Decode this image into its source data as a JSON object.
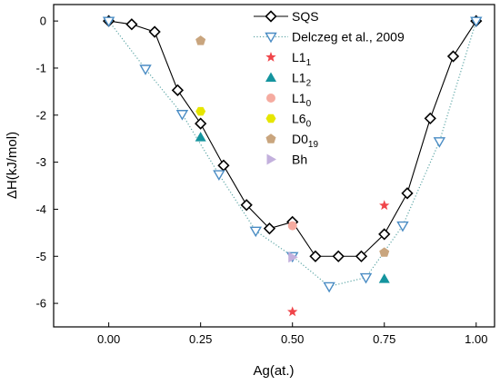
{
  "chart_data": {
    "type": "scatter",
    "title": "",
    "xlabel": "Ag(at.)",
    "ylabel": "ΔH(kJ/mol)",
    "xlim": [
      -0.15,
      1.05
    ],
    "ylim": [
      -6.5,
      0.35
    ],
    "xticks": [
      "0.00",
      "0.25",
      "0.50",
      "0.75",
      "1.00"
    ],
    "yticks": [
      "0",
      "-1",
      "-2",
      "-3",
      "-4",
      "-5",
      "-6"
    ],
    "grid": false,
    "legend_position": "top-right",
    "series": [
      {
        "name": "SQS",
        "style": "line-markers",
        "marker": "diamond-open",
        "color": "#000000",
        "x": [
          0.0,
          0.0625,
          0.125,
          0.1875,
          0.25,
          0.3125,
          0.375,
          0.4375,
          0.5,
          0.5625,
          0.625,
          0.6875,
          0.75,
          0.8125,
          0.875,
          0.9375,
          1.0
        ],
        "y": [
          0.0,
          -0.07,
          -0.23,
          -1.47,
          -2.18,
          -3.07,
          -3.91,
          -4.41,
          -4.27,
          -5.0,
          -5.0,
          -5.0,
          -4.53,
          -3.66,
          -2.07,
          -0.75,
          0.0
        ]
      },
      {
        "name": "Delczeg et al., 2009",
        "style": "dotted-line-markers",
        "marker": "triangle-down-open",
        "color": "#4a8cc4",
        "x": [
          0.0,
          0.1,
          0.2,
          0.3,
          0.4,
          0.5,
          0.6,
          0.7,
          0.8,
          0.9,
          1.0
        ],
        "y": [
          0.0,
          -1.02,
          -1.98,
          -3.26,
          -4.46,
          -5.0,
          -5.64,
          -5.45,
          -4.35,
          -2.56,
          0.0
        ]
      },
      {
        "name": "L1_1",
        "label_main": "L1",
        "label_sub": "1",
        "style": "markers",
        "marker": "star",
        "color": "#f0454a",
        "x": [
          0.5,
          0.75
        ],
        "y": [
          -6.18,
          -3.92
        ]
      },
      {
        "name": "L1_2",
        "label_main": "L1",
        "label_sub": "2",
        "style": "markers",
        "marker": "triangle-up",
        "color": "#14949e",
        "x": [
          0.25,
          0.75
        ],
        "y": [
          -2.47,
          -5.48
        ]
      },
      {
        "name": "L1_0",
        "label_main": "L1",
        "label_sub": "0",
        "style": "markers",
        "marker": "circle",
        "color": "#f5aba0",
        "x": [
          0.5
        ],
        "y": [
          -4.35
        ]
      },
      {
        "name": "L6_0",
        "label_main": "L6",
        "label_sub": "0",
        "style": "markers",
        "marker": "hexagon",
        "color": "#e6e600",
        "x": [
          0.25
        ],
        "y": [
          -1.92
        ]
      },
      {
        "name": "D0_19",
        "label_main": "D0",
        "label_sub": "19",
        "style": "markers",
        "marker": "pentagon",
        "color": "#c9a57e",
        "x": [
          0.25,
          0.75
        ],
        "y": [
          -0.42,
          -4.92
        ]
      },
      {
        "name": "Bh",
        "label_main": "Bh",
        "label_sub": "",
        "style": "markers",
        "marker": "triangle-right",
        "color": "#c3b0dd",
        "x": [
          0.5
        ],
        "y": [
          -5.02
        ]
      }
    ]
  }
}
